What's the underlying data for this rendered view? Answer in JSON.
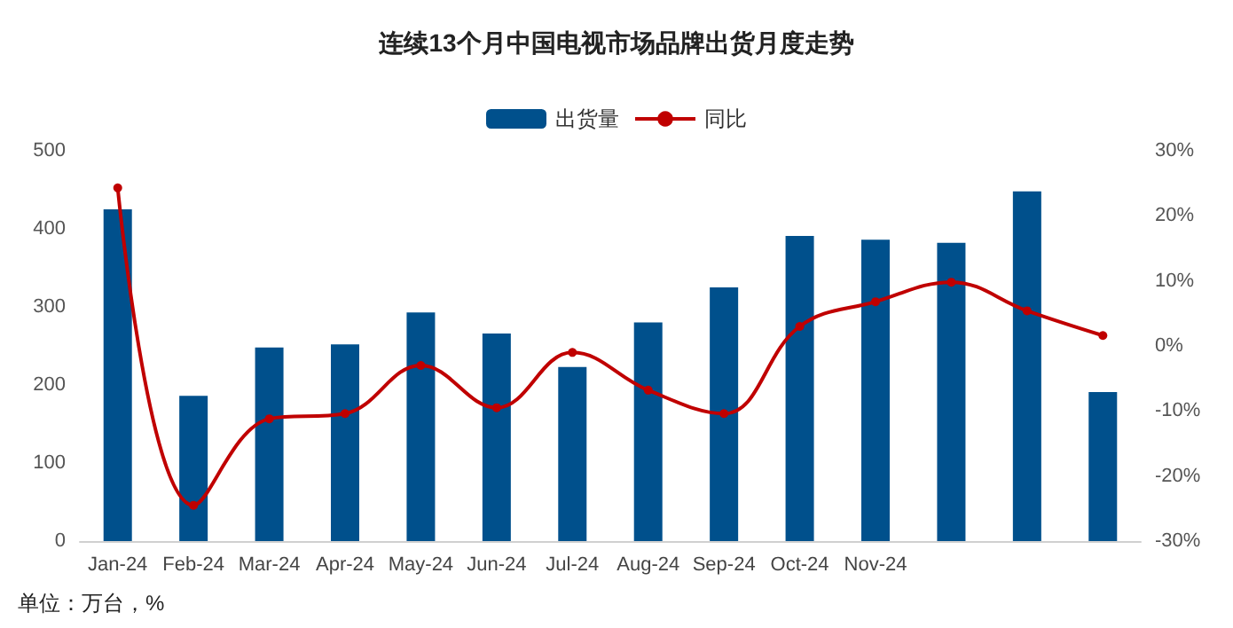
{
  "chart_data": {
    "type": "bar",
    "title": "连续13个月中国电视市场品牌出货月度走势",
    "categories": [
      "Jan-24",
      "Feb-24",
      "Mar-24",
      "Apr-24",
      "May-24",
      "Jun-24",
      "Jul-24",
      "Aug-24",
      "Sep-24",
      "Oct-24",
      "Nov-24",
      null,
      null,
      null
    ],
    "series": [
      {
        "name": "出货量",
        "color": "#00508c",
        "values": [
          425,
          186,
          248,
          252,
          293,
          266,
          223,
          280,
          325,
          391,
          386,
          382,
          448,
          191
        ]
      },
      {
        "name": "同比",
        "type": "line",
        "axis": "y2",
        "color": "#c00000",
        "marker": "circle",
        "values": [
          24.3,
          -24.5,
          -11.2,
          -10.4,
          -3,
          -9.5,
          -1,
          -6.8,
          -10.4,
          3,
          6.8,
          9.8,
          5.4,
          1.6
        ]
      }
    ],
    "ylim": [
      0,
      500
    ],
    "yticks": [
      0,
      100,
      200,
      300,
      400,
      500
    ],
    "y2lim": [
      -30,
      30
    ],
    "y2ticks": [
      {
        "value": -30,
        "label": "-30%"
      },
      {
        "value": -20,
        "label": "-20%"
      },
      {
        "value": -10,
        "label": "-10%"
      },
      {
        "value": 0,
        "label": "0%"
      },
      {
        "value": 10,
        "label": "10%"
      },
      {
        "value": 20,
        "label": "20%"
      },
      {
        "value": 30,
        "label": "30%"
      }
    ],
    "legend": "top",
    "grid": false,
    "annotations": [
      "单位：万台，%"
    ]
  }
}
